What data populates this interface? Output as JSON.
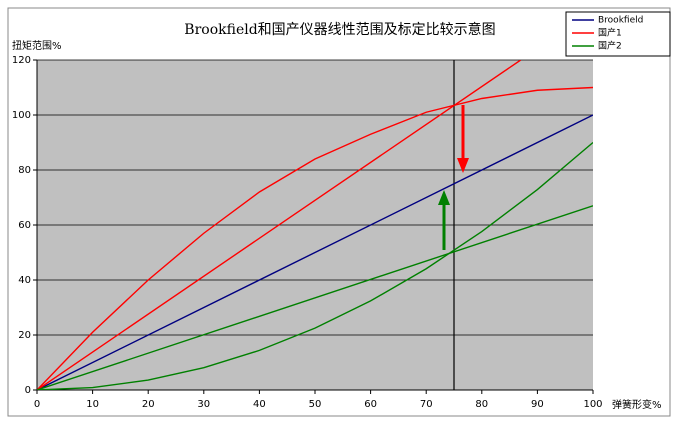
{
  "chart_data": {
    "type": "line",
    "title": "Brookfield和国产仪器线性范围及标定比较示意图",
    "y_label": "扭矩范围%",
    "x_label": "弹簧形变%",
    "xlim": [
      0,
      100
    ],
    "ylim": [
      0,
      120
    ],
    "xticks": [
      0,
      10,
      20,
      30,
      40,
      50,
      60,
      70,
      80,
      90,
      100
    ],
    "yticks": [
      0,
      20,
      40,
      60,
      80,
      100,
      120
    ],
    "grid": true,
    "background": "#c0c0c0",
    "vline": 75,
    "series": [
      {
        "name": "Brookfield",
        "color": "#000080",
        "x": [
          0,
          100
        ],
        "values": [
          0,
          100
        ]
      },
      {
        "name": "国产1",
        "color": "#ff0000",
        "x": [
          0,
          10,
          20,
          30,
          40,
          50,
          60,
          70,
          80,
          90,
          100
        ],
        "values": [
          0,
          21,
          40,
          57,
          72,
          84,
          93,
          101,
          106,
          109,
          110
        ]
      },
      {
        "name": "国产2",
        "color": "#008000",
        "x": [
          0,
          10,
          20,
          30,
          40,
          50,
          60,
          70,
          80,
          90,
          100
        ],
        "values": [
          0,
          0.9,
          3.6,
          8.1,
          14.4,
          22.5,
          32.4,
          44.1,
          57.6,
          72.9,
          90
        ]
      },
      {
        "color": "#ff0000",
        "x": [
          0,
          87
        ],
        "values": [
          0,
          120
        ]
      },
      {
        "color": "#008000",
        "x": [
          0,
          100
        ],
        "values": [
          0,
          67
        ]
      }
    ]
  }
}
